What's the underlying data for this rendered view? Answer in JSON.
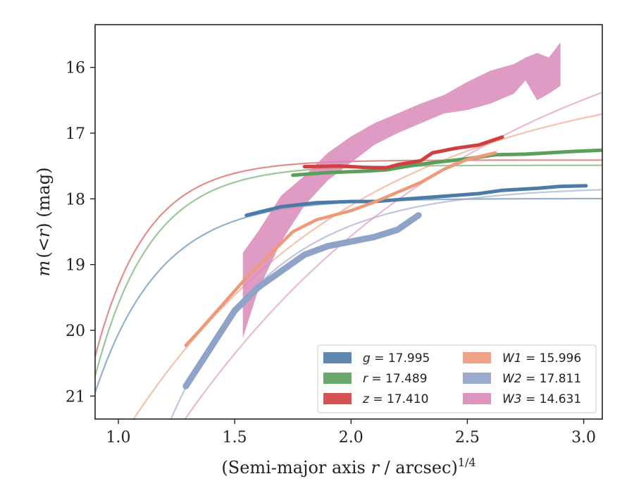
{
  "chart_data": {
    "type": "line",
    "xlabel": "(Semi-major axis r / arcsec)",
    "xlabel_italic": "r",
    "xlabel_pre": "(Semi-major axis ",
    "xlabel_post": " / arcsec)",
    "xlabel_sup": "1/4",
    "ylabel_italic": "m",
    "ylabel_mid": "(<",
    "ylabel_r": "r",
    "ylabel_post": ") (mag)",
    "xlim": [
      0.9,
      3.08
    ],
    "ylim": [
      21.35,
      15.35
    ],
    "y_inverted": true,
    "xticks": [
      "1.0",
      "1.5",
      "2.0",
      "2.5",
      "3.0"
    ],
    "xtick_values": [
      1.0,
      1.5,
      2.0,
      2.5,
      3.0
    ],
    "yticks": [
      "16",
      "17",
      "18",
      "19",
      "20",
      "21"
    ],
    "ytick_values": [
      16,
      17,
      18,
      19,
      20,
      21
    ],
    "grid": false,
    "legend_position": "lower-right",
    "legend_columns": 2,
    "series": [
      {
        "name": "g",
        "total_mag": "17.995",
        "legend_label": "g = 17.995",
        "color": "#4c7ba8",
        "data_band": [
          [
            1.29,
            20.85,
            20.85
          ],
          [
            1.4,
            20.2,
            20.2
          ],
          [
            1.5,
            19.6,
            19.6
          ],
          [
            1.6,
            19.3,
            19.3
          ],
          [
            1.7,
            19.05,
            19.05
          ],
          [
            1.8,
            18.85,
            18.85
          ]
        ],
        "data": [
          [
            1.55,
            18.25
          ],
          [
            1.7,
            18.12
          ],
          [
            1.85,
            18.06
          ],
          [
            2.0,
            18.04
          ],
          [
            2.1,
            18.04
          ],
          [
            2.25,
            18.0
          ],
          [
            2.4,
            17.96
          ],
          [
            2.55,
            17.92
          ],
          [
            2.65,
            17.87
          ],
          [
            2.8,
            17.84
          ],
          [
            2.9,
            17.81
          ],
          [
            3.01,
            17.8
          ]
        ],
        "model": "sersic_g"
      },
      {
        "name": "r",
        "total_mag": "17.489",
        "legend_label": "r = 17.489",
        "color": "#5aa05a",
        "data": [
          [
            1.75,
            17.64
          ],
          [
            1.9,
            17.6
          ],
          [
            2.05,
            17.58
          ],
          [
            2.15,
            17.56
          ],
          [
            2.25,
            17.5
          ],
          [
            2.35,
            17.45
          ],
          [
            2.5,
            17.39
          ],
          [
            2.62,
            17.33
          ],
          [
            2.75,
            17.32
          ],
          [
            2.85,
            17.3
          ],
          [
            2.95,
            17.28
          ],
          [
            3.08,
            17.26
          ]
        ],
        "model": "sersic_r"
      },
      {
        "name": "z",
        "total_mag": "17.410",
        "legend_label": "z = 17.410",
        "color": "#d04040",
        "data": [
          [
            1.8,
            17.51
          ],
          [
            1.95,
            17.5
          ],
          [
            2.05,
            17.52
          ],
          [
            2.15,
            17.53
          ],
          [
            2.2,
            17.48
          ],
          [
            2.3,
            17.42
          ],
          [
            2.35,
            17.3
          ],
          [
            2.45,
            17.23
          ],
          [
            2.55,
            17.18
          ],
          [
            2.65,
            17.06
          ]
        ],
        "model": "sersic_z"
      },
      {
        "name": "W1",
        "total_mag": "15.996",
        "legend_label": "W1 = 15.996",
        "color": "#ee9a7a",
        "data": [
          [
            1.29,
            20.23
          ],
          [
            1.35,
            20.0
          ],
          [
            1.45,
            19.6
          ],
          [
            1.55,
            19.2
          ],
          [
            1.65,
            18.85
          ],
          [
            1.75,
            18.5
          ],
          [
            1.85,
            18.32
          ],
          [
            2.0,
            18.18
          ],
          [
            2.1,
            18.05
          ],
          [
            2.2,
            17.9
          ],
          [
            2.3,
            17.75
          ],
          [
            2.4,
            17.55
          ],
          [
            2.5,
            17.4
          ],
          [
            2.62,
            17.3
          ]
        ],
        "model": "sersic_w1"
      },
      {
        "name": "W2",
        "total_mag": "17.811",
        "legend_label": "W2 = 17.811",
        "color": "#8fa2c8",
        "data": [
          [
            1.29,
            20.85
          ],
          [
            1.4,
            20.25
          ],
          [
            1.5,
            19.7
          ],
          [
            1.6,
            19.35
          ],
          [
            1.7,
            19.1
          ],
          [
            1.8,
            18.85
          ],
          [
            1.9,
            18.72
          ],
          [
            2.0,
            18.65
          ],
          [
            2.1,
            18.58
          ],
          [
            2.2,
            18.47
          ],
          [
            2.29,
            18.25
          ]
        ],
        "model": "sersic_w2"
      },
      {
        "name": "W3",
        "total_mag": "14.631",
        "legend_label": "W3 = 14.631",
        "color": "#d98ab9",
        "band": [
          [
            1.535,
            18.82,
            20.12
          ],
          [
            1.6,
            18.5,
            19.4
          ],
          [
            1.7,
            17.95,
            18.65
          ],
          [
            1.8,
            17.65,
            18.1
          ],
          [
            1.9,
            17.3,
            17.72
          ],
          [
            2.0,
            17.05,
            17.45
          ],
          [
            2.1,
            16.85,
            17.18
          ],
          [
            2.2,
            16.7,
            17.0
          ],
          [
            2.3,
            16.55,
            16.85
          ],
          [
            2.4,
            16.42,
            16.7
          ],
          [
            2.5,
            16.22,
            16.65
          ],
          [
            2.6,
            16.05,
            16.55
          ],
          [
            2.7,
            15.95,
            16.4
          ],
          [
            2.75,
            15.85,
            16.2
          ],
          [
            2.8,
            15.78,
            16.5
          ],
          [
            2.85,
            15.85,
            16.4
          ],
          [
            2.9,
            15.62,
            16.28
          ]
        ],
        "model": "sersic_w3"
      }
    ],
    "models": {
      "sersic_g": {
        "total": 17.995,
        "color": "#4c7ba8"
      },
      "sersic_r": {
        "total": 17.489,
        "color": "#5aa05a"
      },
      "sersic_z": {
        "total": 17.41,
        "color": "#d04040"
      },
      "sersic_w1": {
        "total": 15.996,
        "color": "#ee9a7a"
      },
      "sersic_w2": {
        "total": 17.811,
        "color": "#8fa2c8"
      },
      "sersic_w3": {
        "total": 14.631,
        "color": "#d98ab9"
      }
    }
  }
}
